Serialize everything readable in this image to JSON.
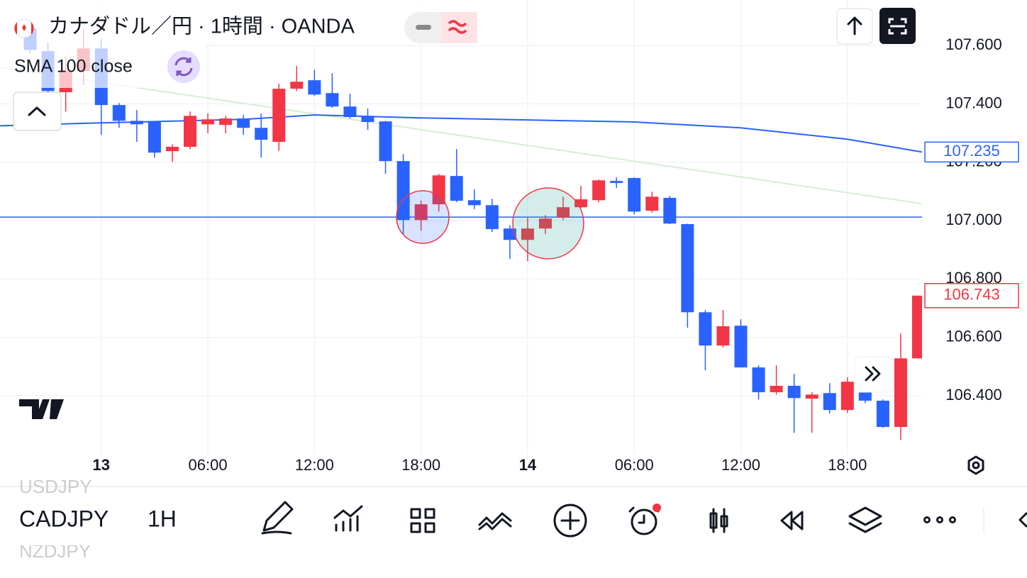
{
  "header": {
    "title": "カナダドル／円 · 1時間 · OANDA"
  },
  "toolbar": {
    "symbol": "CADJPY",
    "interval": "1H",
    "watchlist_prev": "USDJPY",
    "watchlist_next": "NZDJPY"
  },
  "chart_data": {
    "type": "candlestick",
    "x": [
      -4,
      -3,
      -2,
      -1,
      0,
      1,
      2,
      3,
      4,
      5,
      6,
      7,
      8,
      9,
      10,
      11,
      12,
      13,
      14,
      15,
      16,
      17,
      18,
      19,
      20,
      21,
      22,
      23,
      24,
      25,
      26,
      27,
      28,
      29,
      30,
      31,
      32,
      33,
      34,
      35,
      36,
      37,
      38,
      39,
      40,
      41,
      42,
      43,
      44,
      45,
      46
    ],
    "open": [
      107.658,
      107.581,
      107.44,
      107.513,
      107.59,
      107.396,
      107.342,
      107.338,
      107.238,
      107.253,
      107.33,
      107.328,
      107.35,
      107.318,
      107.27,
      107.452,
      107.481,
      107.437,
      107.391,
      107.359,
      107.34,
      107.204,
      107.002,
      107.056,
      107.153,
      107.07,
      107.053,
      106.973,
      106.934,
      106.973,
      107.01,
      107.046,
      107.07,
      107.136,
      107.146,
      107.034,
      107.078,
      106.988,
      106.686,
      106.572,
      106.64,
      106.497,
      106.412,
      106.434,
      106.39,
      106.409,
      106.351,
      106.436,
      106.383,
      106.293,
      106.528
    ],
    "high": [
      107.678,
      107.61,
      107.561,
      107.658,
      107.622,
      107.403,
      107.379,
      107.342,
      107.262,
      107.374,
      107.367,
      107.359,
      107.362,
      107.367,
      107.469,
      107.53,
      107.517,
      107.505,
      107.435,
      107.384,
      107.342,
      107.228,
      107.068,
      107.16,
      107.245,
      107.107,
      107.075,
      106.985,
      107.01,
      107.019,
      107.082,
      107.119,
      107.141,
      107.148,
      107.148,
      107.099,
      107.085,
      106.99,
      106.694,
      106.694,
      106.662,
      106.504,
      106.504,
      106.475,
      106.412,
      106.443,
      106.463,
      106.48,
      106.387,
      106.613,
      106.743
    ],
    "low": [
      107.573,
      107.44,
      107.374,
      107.464,
      107.294,
      107.318,
      107.27,
      107.216,
      107.201,
      107.245,
      107.299,
      107.299,
      107.294,
      107.216,
      107.24,
      107.444,
      107.427,
      107.386,
      107.35,
      107.311,
      107.16,
      106.954,
      106.966,
      107.031,
      107.063,
      107.039,
      106.961,
      106.869,
      106.861,
      106.954,
      107.002,
      107.044,
      107.063,
      107.112,
      107.022,
      107.027,
      106.988,
      106.633,
      106.487,
      106.565,
      106.497,
      106.387,
      106.404,
      106.273,
      106.273,
      106.339,
      106.341,
      106.375,
      106.29,
      106.249,
      106.528
    ],
    "close": [
      107.585,
      107.444,
      107.513,
      107.59,
      107.396,
      107.342,
      107.33,
      107.233,
      107.253,
      107.359,
      107.347,
      107.35,
      107.318,
      107.277,
      107.452,
      107.476,
      107.432,
      107.391,
      107.355,
      107.338,
      107.204,
      107.002,
      107.056,
      107.155,
      107.068,
      107.053,
      106.971,
      106.934,
      106.973,
      107.007,
      107.046,
      107.073,
      107.138,
      107.129,
      107.031,
      107.082,
      106.99,
      106.686,
      106.572,
      106.638,
      106.497,
      106.412,
      106.434,
      106.392,
      106.404,
      106.351,
      106.448,
      106.383,
      106.293,
      106.528,
      106.743
    ],
    "up_color": "#f23645",
    "down_color": "#2962ff",
    "series": [
      {
        "name": "SMA 100 close",
        "color": "#2962ff",
        "x": [
          -5.7,
          0,
          8,
          12,
          18,
          30,
          36,
          42,
          46.2
        ],
        "values": [
          107.325,
          107.335,
          107.347,
          107.362,
          107.352,
          107.338,
          107.318,
          107.279,
          107.235
        ]
      }
    ],
    "overlays": [
      {
        "color": "#d7ecd5",
        "x": [
          -5.7,
          46.2
        ],
        "values": [
          107.525,
          107.058
        ]
      }
    ],
    "hline": {
      "value": 107.012,
      "color": "#2962ff"
    },
    "xlim": [
      -5.7,
      46.2
    ],
    "ylim": [
      106.225,
      107.756
    ],
    "yticks": [
      {
        "value": 106.4,
        "label": "106.400"
      },
      {
        "value": 106.6,
        "label": "106.600"
      },
      {
        "value": 106.8,
        "label": "106.800"
      },
      {
        "value": 107,
        "label": "107.000"
      },
      {
        "value": 107.2,
        "label": "107.200"
      },
      {
        "value": 107.4,
        "label": "107.400"
      },
      {
        "value": 107.6,
        "label": "107.600"
      }
    ],
    "xticks": [
      {
        "value": 0,
        "label": "13"
      },
      {
        "value": 6,
        "label": "06:00"
      },
      {
        "value": 12,
        "label": "12:00"
      },
      {
        "value": 18,
        "label": "18:00"
      },
      {
        "value": 24,
        "label": "14"
      },
      {
        "value": 30,
        "label": "06:00"
      },
      {
        "value": 36,
        "label": "12:00"
      },
      {
        "value": 42,
        "label": "18:00"
      }
    ],
    "grid": true
  }
}
